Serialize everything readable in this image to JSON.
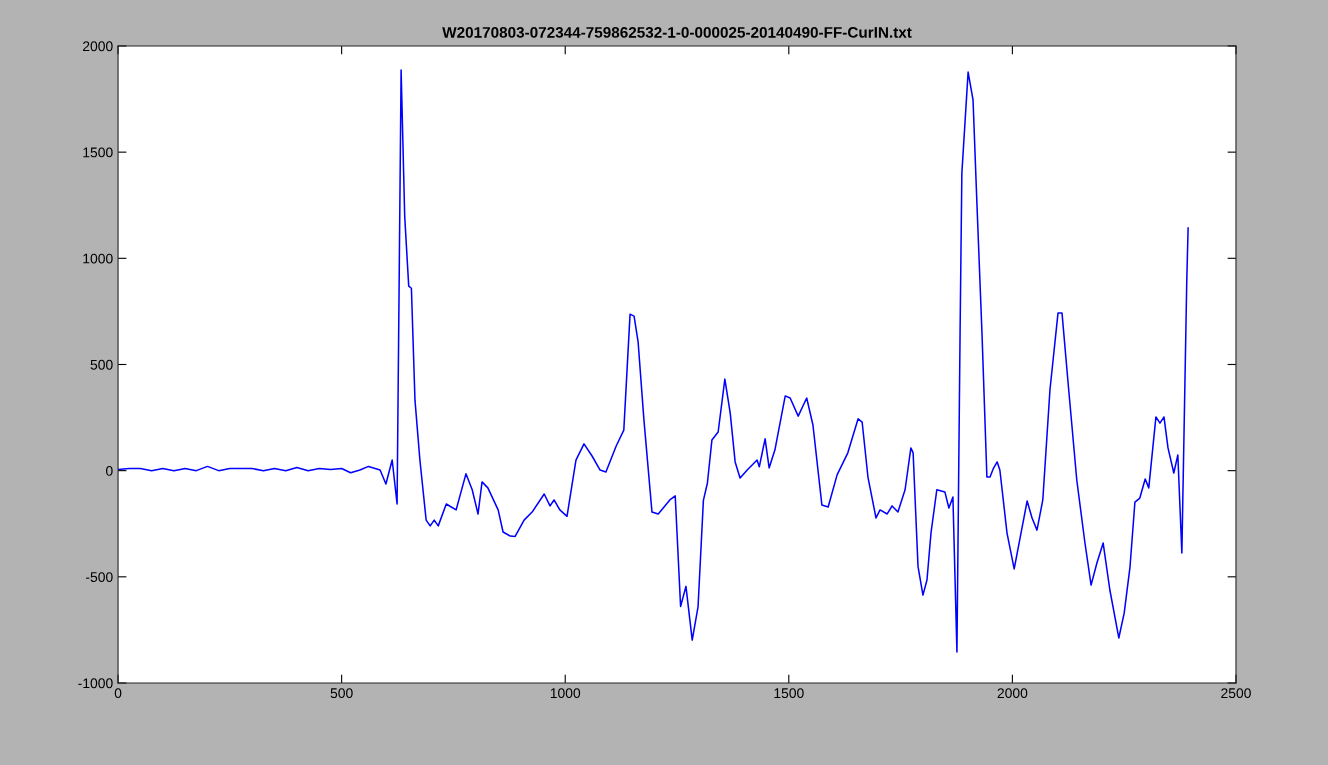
{
  "chart_data": {
    "type": "line",
    "title": "W20170803-072344-759862532-1-0-000025-20140490-FF-CurIN.txt",
    "x": [
      0,
      25,
      50,
      75,
      100,
      125,
      150,
      175,
      200,
      225,
      250,
      275,
      300,
      325,
      350,
      375,
      400,
      425,
      450,
      475,
      500,
      520,
      541,
      560,
      586,
      599,
      613,
      624,
      633,
      641,
      650,
      656,
      664,
      675,
      689,
      698,
      707,
      716,
      734,
      756,
      778,
      792,
      805,
      814,
      827,
      850,
      861,
      877,
      888,
      908,
      926,
      953,
      966,
      975,
      988,
      1004,
      1024,
      1042,
      1060,
      1078,
      1091,
      1114,
      1131,
      1145,
      1154,
      1163,
      1176,
      1194,
      1208,
      1234,
      1246,
      1258,
      1270,
      1284,
      1297,
      1309,
      1318,
      1328,
      1342,
      1357,
      1369,
      1380,
      1391,
      1407,
      1429,
      1434,
      1447,
      1456,
      1469,
      1492,
      1503,
      1521,
      1540,
      1554,
      1574,
      1588,
      1608,
      1632,
      1655,
      1664,
      1677,
      1695,
      1704,
      1720,
      1731,
      1744,
      1760,
      1773,
      1778,
      1789,
      1800,
      1809,
      1818,
      1831,
      1849,
      1858,
      1867,
      1876,
      1883,
      1887,
      1901,
      1912,
      1921,
      1932,
      1943,
      1950,
      1957,
      1966,
      1972,
      1988,
      2004,
      2015,
      2033,
      2044,
      2055,
      2068,
      2084,
      2102,
      2111,
      2124,
      2144,
      2162,
      2176,
      2189,
      2203,
      2218,
      2238,
      2250,
      2263,
      2274,
      2285,
      2297,
      2305,
      2321,
      2330,
      2339,
      2348,
      2361,
      2370,
      2379,
      2390,
      2393
    ],
    "series": [
      {
        "color": "#0000ff",
        "values": [
          5,
          10,
          10,
          0,
          10,
          0,
          10,
          0,
          20,
          0,
          10,
          10,
          10,
          0,
          10,
          0,
          15,
          0,
          10,
          5,
          10,
          -10,
          3,
          20,
          3,
          -63,
          50,
          -157,
          1887,
          1199,
          869,
          859,
          332,
          50,
          -233,
          -260,
          -233,
          -260,
          -157,
          -185,
          -15,
          -90,
          -204,
          -53,
          -81,
          -185,
          -289,
          -308,
          -310,
          -233,
          -195,
          -110,
          -166,
          -138,
          -185,
          -215,
          50,
          126,
          69,
          3,
          -6,
          116,
          191,
          737,
          728,
          606,
          239,
          -195,
          -204,
          -138,
          -119,
          -640,
          -545,
          -798,
          -642,
          -140,
          -58,
          144,
          182,
          431,
          271,
          41,
          -35,
          3,
          50,
          18,
          150,
          13,
          98,
          352,
          342,
          257,
          342,
          215,
          -162,
          -171,
          -20,
          84,
          244,
          229,
          -30,
          -223,
          -185,
          -204,
          -166,
          -195,
          -90,
          107,
          84,
          -452,
          -586,
          -515,
          -293,
          -90,
          -100,
          -176,
          -124,
          -854,
          648,
          1401,
          1877,
          1746,
          1241,
          648,
          -30,
          -30,
          8,
          41,
          3,
          -294,
          -463,
          -341,
          -143,
          -223,
          -280,
          -138,
          380,
          742,
          742,
          427,
          -44,
          -336,
          -539,
          -435,
          -341,
          -562,
          -788,
          -671,
          -454,
          -148,
          -129,
          -39,
          -81,
          253,
          224,
          253,
          107,
          -11,
          74,
          -388,
          898,
          1143
        ]
      }
    ],
    "xlim": [
      0,
      2500
    ],
    "ylim": [
      -1000,
      2000
    ],
    "xticks": [
      0,
      500,
      1000,
      1500,
      2000,
      2500
    ],
    "yticks": [
      -1000,
      -500,
      0,
      500,
      1000,
      1500,
      2000
    ],
    "grid": false,
    "legend": false
  }
}
